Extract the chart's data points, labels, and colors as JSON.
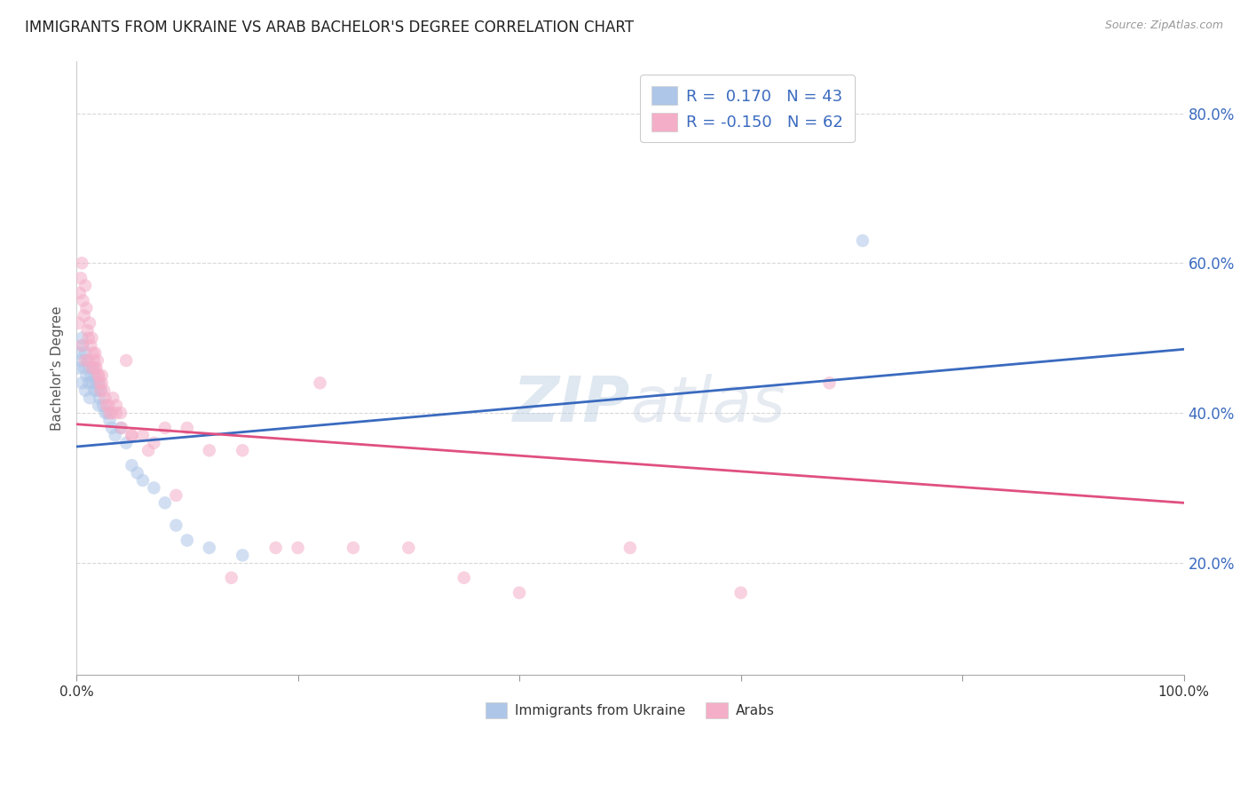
{
  "title": "IMMIGRANTS FROM UKRAINE VS ARAB BACHELOR'S DEGREE CORRELATION CHART",
  "source": "Source: ZipAtlas.com",
  "ylabel": "Bachelor's Degree",
  "legend_label1": "Immigrants from Ukraine",
  "legend_label2": "Arabs",
  "R1": 0.17,
  "N1": 43,
  "R2": -0.15,
  "N2": 62,
  "color_ukraine": "#aec6e8",
  "color_arab": "#f4aec8",
  "color_ukraine_line": "#3a6abf",
  "color_arab_line": "#e05080",
  "watermark_zip": "ZIP",
  "watermark_atlas": "atlas",
  "ukraine_x": [
    0.2,
    0.3,
    0.4,
    0.5,
    0.6,
    0.7,
    0.8,
    0.9,
    1.0,
    1.1,
    1.2,
    1.3,
    1.4,
    1.5,
    1.6,
    1.7,
    1.8,
    1.9,
    2.0,
    2.1,
    2.2,
    2.4,
    2.6,
    2.8,
    3.0,
    3.2,
    3.5,
    4.0,
    4.5,
    5.0,
    5.5,
    6.0,
    7.0,
    8.0,
    9.0,
    10.0,
    12.0,
    15.0,
    0.5,
    0.8,
    1.2,
    2.0,
    71.0
  ],
  "ukraine_y": [
    46,
    48,
    47,
    50,
    49,
    46,
    48,
    45,
    47,
    44,
    46,
    45,
    44,
    46,
    43,
    45,
    44,
    43,
    44,
    42,
    43,
    41,
    40,
    40,
    39,
    38,
    37,
    38,
    36,
    33,
    32,
    31,
    30,
    28,
    25,
    23,
    22,
    21,
    44,
    43,
    42,
    41,
    63
  ],
  "arab_x": [
    0.2,
    0.3,
    0.4,
    0.5,
    0.6,
    0.7,
    0.8,
    0.9,
    1.0,
    1.1,
    1.2,
    1.3,
    1.4,
    1.5,
    1.6,
    1.7,
    1.8,
    1.9,
    2.0,
    2.1,
    2.2,
    2.3,
    2.5,
    2.7,
    3.0,
    3.3,
    3.6,
    4.0,
    4.5,
    5.0,
    6.0,
    7.0,
    8.0,
    10.0,
    12.0,
    15.0,
    18.0,
    20.0,
    25.0,
    30.0,
    35.0,
    40.0,
    50.0,
    60.0,
    0.5,
    0.8,
    1.1,
    1.4,
    1.7,
    2.0,
    2.3,
    2.6,
    2.9,
    3.2,
    3.6,
    4.1,
    5.0,
    6.5,
    9.0,
    14.0,
    22.0,
    68.0
  ],
  "arab_y": [
    52,
    56,
    58,
    60,
    55,
    53,
    57,
    54,
    51,
    50,
    52,
    49,
    50,
    48,
    47,
    48,
    46,
    47,
    45,
    44,
    43,
    45,
    43,
    41,
    40,
    42,
    41,
    40,
    47,
    37,
    37,
    36,
    38,
    38,
    35,
    35,
    22,
    22,
    22,
    22,
    18,
    16,
    22,
    16,
    49,
    47,
    47,
    46,
    46,
    45,
    44,
    42,
    41,
    40,
    40,
    38,
    37,
    35,
    29,
    18,
    44,
    44
  ],
  "ukraine_line_x": [
    0,
    100
  ],
  "ukraine_line_y": [
    35.5,
    48.5
  ],
  "arab_line_x": [
    0,
    100
  ],
  "arab_line_y": [
    38.5,
    28.0
  ],
  "xlim": [
    0,
    100
  ],
  "ylim": [
    5,
    87
  ],
  "yticks": [
    20,
    40,
    60,
    80
  ],
  "xticks": [
    0,
    20,
    40,
    60,
    80,
    100
  ],
  "xtick_labels": [
    "0.0%",
    "",
    "",
    "",
    "",
    "100.0%"
  ],
  "grid_color": "#d8d8d8",
  "background_color": "#ffffff",
  "title_fontsize": 12,
  "dot_size": 110,
  "dot_alpha": 0.55
}
